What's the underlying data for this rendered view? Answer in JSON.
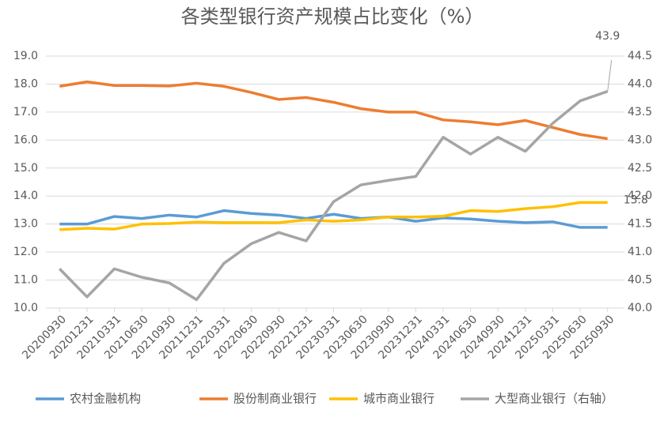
{
  "chart_data": {
    "type": "line",
    "title": "各类型银行资产规模占比变化（%）",
    "categories": [
      "20200930",
      "20201231",
      "20210331",
      "20210630",
      "20210930",
      "20211231",
      "20220331",
      "20220630",
      "20220930",
      "20221231",
      "20230331",
      "20230630",
      "20230930",
      "20231231",
      "20240331",
      "20240630",
      "20240930",
      "20241231",
      "20250331",
      "20250630",
      "20250930"
    ],
    "series": [
      {
        "name": "农村金融机构",
        "color": "#5b9bd5",
        "values": [
          13.0,
          13.0,
          13.27,
          13.2,
          13.32,
          13.25,
          13.48,
          13.38,
          13.32,
          13.2,
          13.35,
          13.2,
          13.25,
          13.1,
          13.22,
          13.18,
          13.1,
          13.05,
          13.08,
          12.88,
          12.88
        ]
      },
      {
        "name": "股份制商业银行",
        "color": "#ed7d31",
        "values": [
          17.92,
          18.08,
          17.95,
          17.95,
          17.93,
          18.03,
          17.92,
          17.7,
          17.45,
          17.52,
          17.35,
          17.12,
          17.0,
          17.0,
          16.72,
          16.65,
          16.55,
          16.7,
          16.45,
          16.2,
          16.05
        ]
      },
      {
        "name": "城市商业银行",
        "color": "#ffc000",
        "values": [
          12.8,
          12.85,
          12.82,
          13.0,
          13.02,
          13.07,
          13.05,
          13.05,
          13.05,
          13.15,
          13.1,
          13.15,
          13.25,
          13.25,
          13.28,
          13.48,
          13.45,
          13.55,
          13.62,
          13.77,
          13.77
        ],
        "value_labels": [
          null,
          null,
          null,
          null,
          null,
          null,
          null,
          null,
          null,
          null,
          null,
          null,
          null,
          null,
          null,
          null,
          null,
          null,
          null,
          null,
          "13.8"
        ]
      },
      {
        "name": "大型商业银行（右轴）",
        "color": "#a5a5a5",
        "axis": "y2",
        "values": [
          40.7,
          40.2,
          40.7,
          40.55,
          40.45,
          40.15,
          40.8,
          41.15,
          41.35,
          41.2,
          41.9,
          42.2,
          42.28,
          42.35,
          43.05,
          42.75,
          43.05,
          42.8,
          43.3,
          43.7,
          43.87
        ],
        "value_labels": [
          null,
          null,
          null,
          null,
          null,
          null,
          null,
          null,
          null,
          null,
          null,
          null,
          null,
          null,
          null,
          null,
          null,
          null,
          null,
          null,
          "43.9"
        ]
      }
    ],
    "ylim": [
      10,
      19
    ],
    "yticks": [
      {
        "value": 10,
        "label": "10.0"
      },
      {
        "value": 11,
        "label": "11.0"
      },
      {
        "value": 12,
        "label": "12.0"
      },
      {
        "value": 13,
        "label": "13.0"
      },
      {
        "value": 14,
        "label": "14.0"
      },
      {
        "value": 15,
        "label": "15.0"
      },
      {
        "value": 16,
        "label": "16.0"
      },
      {
        "value": 17,
        "label": "17.0"
      },
      {
        "value": 18,
        "label": "18.0"
      },
      {
        "value": 19,
        "label": "19.0"
      }
    ],
    "y2lim": [
      40,
      44.5
    ],
    "y2ticks": [
      {
        "value": 40,
        "label": "40.0"
      },
      40.5,
      {
        "value": 41,
        "label": "41.0"
      },
      41.5,
      {
        "value": 42,
        "label": "42.0"
      },
      42.5,
      {
        "value": 43,
        "label": "43.0"
      },
      43.5,
      {
        "value": 44,
        "label": "44.0"
      },
      44.5
    ],
    "grid": true,
    "legend": "bottom"
  }
}
